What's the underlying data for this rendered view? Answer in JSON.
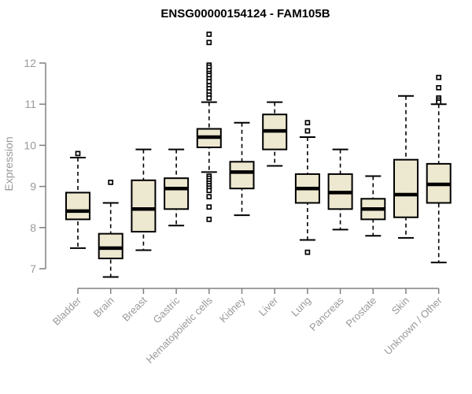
{
  "page": {
    "background": "#ffffff"
  },
  "chart_data": {
    "type": "box",
    "title": "ENSG00000154124 - FAM105B",
    "xlabel": "",
    "ylabel": "Expression",
    "ylim": [
      7,
      12
    ],
    "yticks": [
      7,
      8,
      9,
      10,
      11,
      12
    ],
    "grid": false,
    "legend_position": "none",
    "categories": [
      "Bladder",
      "Brain",
      "Breast",
      "Gastric",
      "Hematopoietic cells",
      "Kidney",
      "Liver",
      "Lung",
      "Pancreas",
      "Prostate",
      "Skin",
      "Unknown / Other"
    ],
    "boxes": [
      {
        "label": "Bladder",
        "whisker_low": 7.5,
        "q1": 8.2,
        "median": 8.4,
        "q3": 8.85,
        "whisker_high": 9.7,
        "outliers": [
          9.8
        ]
      },
      {
        "label": "Brain",
        "whisker_low": 6.8,
        "q1": 7.25,
        "median": 7.5,
        "q3": 7.85,
        "whisker_high": 8.6,
        "outliers": [
          9.1
        ]
      },
      {
        "label": "Breast",
        "whisker_low": 7.45,
        "q1": 7.9,
        "median": 8.45,
        "q3": 9.15,
        "whisker_high": 9.9,
        "outliers": []
      },
      {
        "label": "Gastric",
        "whisker_low": 8.05,
        "q1": 8.45,
        "median": 8.95,
        "q3": 9.2,
        "whisker_high": 9.9,
        "outliers": []
      },
      {
        "label": "Hematopoietic cells",
        "whisker_low": 9.35,
        "q1": 9.95,
        "median": 10.2,
        "q3": 10.4,
        "whisker_high": 11.05,
        "outliers": [
          12.7,
          12.5,
          11.95,
          11.9,
          11.82,
          11.75,
          11.7,
          11.62,
          11.55,
          11.45,
          11.38,
          11.3,
          11.22,
          11.15,
          9.25,
          9.2,
          9.14,
          9.08,
          9.02,
          8.96,
          8.9,
          8.75,
          8.5,
          8.2
        ]
      },
      {
        "label": "Kidney",
        "whisker_low": 8.3,
        "q1": 8.95,
        "median": 9.35,
        "q3": 9.6,
        "whisker_high": 10.55,
        "outliers": []
      },
      {
        "label": "Liver",
        "whisker_low": 9.5,
        "q1": 9.9,
        "median": 10.35,
        "q3": 10.75,
        "whisker_high": 11.05,
        "outliers": []
      },
      {
        "label": "Lung",
        "whisker_low": 7.7,
        "q1": 8.6,
        "median": 8.95,
        "q3": 9.3,
        "whisker_high": 10.2,
        "outliers": [
          10.55,
          10.35,
          7.4
        ]
      },
      {
        "label": "Pancreas",
        "whisker_low": 7.95,
        "q1": 8.45,
        "median": 8.85,
        "q3": 9.3,
        "whisker_high": 9.9,
        "outliers": []
      },
      {
        "label": "Prostate",
        "whisker_low": 7.8,
        "q1": 8.2,
        "median": 8.45,
        "q3": 8.7,
        "whisker_high": 9.25,
        "outliers": []
      },
      {
        "label": "Skin",
        "whisker_low": 7.75,
        "q1": 8.25,
        "median": 8.8,
        "q3": 9.65,
        "whisker_high": 11.2,
        "outliers": []
      },
      {
        "label": "Unknown / Other",
        "whisker_low": 7.15,
        "q1": 8.6,
        "median": 9.05,
        "q3": 9.55,
        "whisker_high": 11.0,
        "outliers": [
          11.65,
          11.4,
          11.15,
          11.1,
          11.05
        ]
      }
    ],
    "colors": {
      "box_fill": "#ede8d0",
      "box_border": "#000000",
      "median": "#000000",
      "whisker": "#000000",
      "outlier": "#000000",
      "axis": "#808080",
      "tick_label": "#999999",
      "title": "#000000",
      "background": "#ffffff"
    }
  }
}
